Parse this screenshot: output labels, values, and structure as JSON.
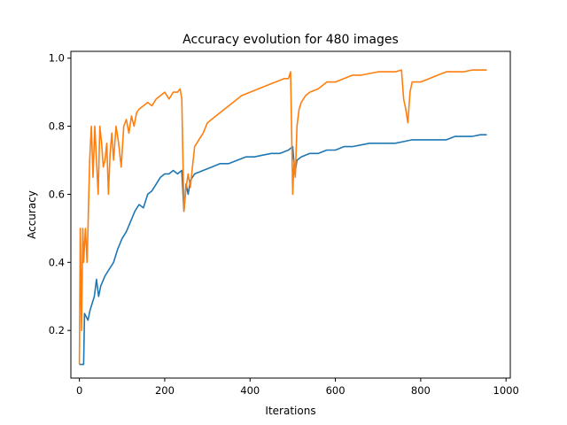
{
  "chart_data": {
    "type": "line",
    "title": "Accuracy evolution for 480 images",
    "xlabel": "Iterations",
    "ylabel": "Accuracy",
    "xlim": [
      -20,
      1010
    ],
    "ylim": [
      0.06,
      1.02
    ],
    "xticks": [
      0,
      200,
      400,
      600,
      800,
      1000
    ],
    "xtick_labels": [
      "0",
      "200",
      "400",
      "600",
      "800",
      "1000"
    ],
    "yticks": [
      0.2,
      0.4,
      0.6,
      0.8,
      1.0
    ],
    "ytick_labels": [
      "0.2",
      "0.4",
      "0.6",
      "0.8",
      "1.0"
    ],
    "grid": false,
    "legend": "none",
    "series": [
      {
        "color": "#1f77b4",
        "x": [
          0,
          10,
          12,
          20,
          25,
          35,
          40,
          45,
          50,
          60,
          70,
          80,
          90,
          100,
          110,
          120,
          130,
          140,
          150,
          160,
          170,
          180,
          190,
          200,
          210,
          220,
          230,
          240,
          245,
          250,
          255,
          260,
          265,
          270,
          290,
          310,
          330,
          350,
          370,
          390,
          410,
          430,
          450,
          470,
          490,
          500,
          505,
          510,
          520,
          540,
          560,
          580,
          600,
          620,
          640,
          660,
          680,
          700,
          720,
          740,
          760,
          780,
          800,
          820,
          840,
          860,
          880,
          900,
          920,
          940,
          955
        ],
        "y": [
          0.1,
          0.1,
          0.25,
          0.23,
          0.26,
          0.3,
          0.35,
          0.3,
          0.33,
          0.36,
          0.38,
          0.4,
          0.44,
          0.47,
          0.49,
          0.52,
          0.55,
          0.57,
          0.56,
          0.6,
          0.61,
          0.63,
          0.65,
          0.66,
          0.66,
          0.67,
          0.66,
          0.67,
          0.55,
          0.63,
          0.6,
          0.64,
          0.65,
          0.66,
          0.67,
          0.68,
          0.69,
          0.69,
          0.7,
          0.71,
          0.71,
          0.715,
          0.72,
          0.72,
          0.73,
          0.74,
          0.66,
          0.7,
          0.71,
          0.72,
          0.72,
          0.73,
          0.73,
          0.74,
          0.74,
          0.745,
          0.75,
          0.75,
          0.75,
          0.75,
          0.755,
          0.76,
          0.76,
          0.76,
          0.76,
          0.76,
          0.77,
          0.77,
          0.77,
          0.775,
          0.775
        ]
      },
      {
        "color": "#ff7f0e",
        "x": [
          0,
          2,
          5,
          8,
          10,
          14,
          18,
          20,
          24,
          28,
          32,
          36,
          40,
          44,
          48,
          52,
          56,
          60,
          64,
          68,
          72,
          76,
          80,
          86,
          92,
          98,
          104,
          110,
          116,
          122,
          128,
          134,
          140,
          150,
          160,
          170,
          180,
          190,
          200,
          210,
          220,
          230,
          236,
          240,
          245,
          250,
          255,
          260,
          265,
          270,
          280,
          290,
          300,
          320,
          340,
          360,
          380,
          400,
          420,
          440,
          460,
          480,
          490,
          495,
          500,
          503,
          506,
          510,
          515,
          520,
          530,
          540,
          560,
          580,
          600,
          620,
          640,
          660,
          680,
          700,
          720,
          740,
          755,
          760,
          765,
          770,
          775,
          780,
          800,
          820,
          840,
          860,
          880,
          900,
          920,
          940,
          955
        ],
        "y": [
          0.1,
          0.5,
          0.2,
          0.5,
          0.4,
          0.5,
          0.4,
          0.5,
          0.7,
          0.8,
          0.65,
          0.8,
          0.7,
          0.6,
          0.8,
          0.75,
          0.68,
          0.7,
          0.75,
          0.6,
          0.72,
          0.78,
          0.7,
          0.8,
          0.75,
          0.68,
          0.8,
          0.82,
          0.78,
          0.83,
          0.8,
          0.84,
          0.85,
          0.86,
          0.87,
          0.86,
          0.88,
          0.89,
          0.9,
          0.88,
          0.9,
          0.9,
          0.91,
          0.88,
          0.55,
          0.62,
          0.66,
          0.62,
          0.68,
          0.74,
          0.76,
          0.78,
          0.81,
          0.83,
          0.85,
          0.87,
          0.89,
          0.9,
          0.91,
          0.92,
          0.93,
          0.94,
          0.94,
          0.96,
          0.6,
          0.7,
          0.65,
          0.8,
          0.85,
          0.87,
          0.89,
          0.9,
          0.91,
          0.93,
          0.93,
          0.94,
          0.95,
          0.95,
          0.955,
          0.96,
          0.96,
          0.96,
          0.965,
          0.88,
          0.85,
          0.81,
          0.9,
          0.93,
          0.93,
          0.94,
          0.95,
          0.96,
          0.96,
          0.96,
          0.965,
          0.965,
          0.965
        ]
      }
    ]
  }
}
